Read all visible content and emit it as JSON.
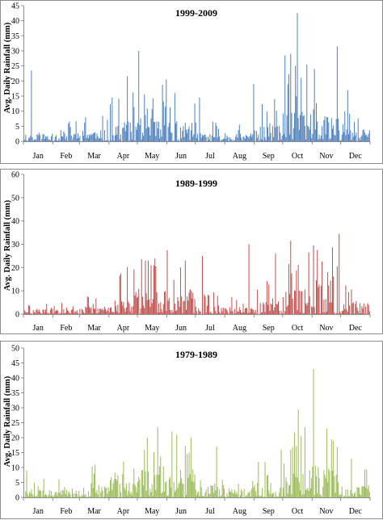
{
  "chart_data": [
    {
      "type": "bar",
      "title": "1999-2009",
      "ylabel": "Avg. Daily Rainfall (mm)",
      "xlabel": "",
      "ylim": [
        0,
        45
      ],
      "yticks": [
        0,
        5,
        10,
        15,
        20,
        25,
        30,
        35,
        40,
        45
      ],
      "months": [
        "Jan",
        "Feb",
        "Mar",
        "Apr",
        "May",
        "Jun",
        "Jul",
        "Aug",
        "Sep",
        "Oct",
        "Nov",
        "Dec"
      ],
      "color": "#4f81bd",
      "grid": false,
      "legend": "none",
      "seed": 11,
      "base": [
        1.5,
        2.0,
        2.2,
        4.0,
        4.5,
        4.0,
        1.6,
        1.6,
        3.0,
        6.0,
        5.0,
        2.5
      ],
      "peaks": [
        [
          8,
          23.5
        ],
        [
          93,
          14.5
        ],
        [
          109,
          21.5
        ],
        [
          121,
          30
        ],
        [
          150,
          20.5
        ],
        [
          159,
          16
        ],
        [
          185,
          14.5
        ],
        [
          242,
          19
        ],
        [
          264,
          14
        ],
        [
          275,
          28.5
        ],
        [
          281,
          29
        ],
        [
          288,
          42.5
        ],
        [
          292,
          21
        ],
        [
          298,
          25.5
        ],
        [
          306,
          24
        ],
        [
          330,
          31.5
        ],
        [
          341,
          17
        ]
      ]
    },
    {
      "type": "bar",
      "title": "1989-1999",
      "ylabel": "Avg. Daily Rainfall (mm)",
      "xlabel": "",
      "ylim": [
        0,
        60
      ],
      "yticks": [
        0,
        10,
        20,
        30,
        40,
        50,
        60
      ],
      "months": [
        "Jan",
        "Feb",
        "Mar",
        "Apr",
        "May",
        "Jun",
        "Jul",
        "Aug",
        "Sep",
        "Oct",
        "Nov",
        "Dec"
      ],
      "color": "#c0504d",
      "grid": false,
      "legend": "none",
      "seed": 29,
      "base": [
        1.2,
        1.3,
        2.0,
        5.0,
        6.5,
        5.5,
        2.5,
        1.8,
        3.5,
        7.0,
        9.0,
        3.0
      ],
      "peaks": [
        [
          102,
          17.5
        ],
        [
          128,
          23
        ],
        [
          134,
          21
        ],
        [
          139,
          20.5
        ],
        [
          151,
          27.5
        ],
        [
          165,
          20
        ],
        [
          170,
          23
        ],
        [
          188,
          25
        ],
        [
          237,
          30
        ],
        [
          265,
          26
        ],
        [
          281,
          31.5
        ],
        [
          300,
          26.5
        ],
        [
          305,
          29.5
        ],
        [
          309,
          27.5
        ],
        [
          320,
          18
        ]
      ]
    },
    {
      "type": "bar",
      "title": "1979-1989",
      "ylabel": "Avg. Daily Rainfall (mm)",
      "xlabel": "",
      "ylim": [
        0,
        50
      ],
      "yticks": [
        0,
        5,
        10,
        15,
        20,
        25,
        30,
        35,
        40,
        45,
        50
      ],
      "months": [
        "Jan",
        "Feb",
        "Mar",
        "Apr",
        "May",
        "Jun",
        "Jul",
        "Aug",
        "Sep",
        "Oct",
        "Nov",
        "Dec"
      ],
      "color": "#9bbb59",
      "grid": false,
      "legend": "none",
      "seed": 47,
      "base": [
        1.5,
        1.5,
        2.5,
        4.0,
        5.5,
        6.0,
        2.5,
        2.0,
        3.0,
        6.0,
        6.5,
        2.5
      ],
      "peaks": [
        [
          3,
          9
        ],
        [
          37,
          6
        ],
        [
          75,
          11
        ],
        [
          105,
          12
        ],
        [
          130,
          20
        ],
        [
          141,
          23.5
        ],
        [
          156,
          22
        ],
        [
          161,
          21
        ],
        [
          176,
          20
        ],
        [
          203,
          17
        ],
        [
          271,
          16
        ],
        [
          289,
          29.5
        ],
        [
          296,
          23.5
        ],
        [
          305,
          43
        ],
        [
          319,
          23
        ],
        [
          345,
          13
        ]
      ]
    }
  ]
}
